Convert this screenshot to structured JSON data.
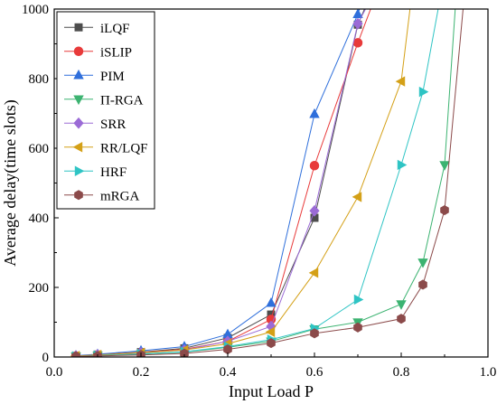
{
  "chart_data": {
    "type": "line",
    "title": "",
    "xlabel": "Input Load P",
    "ylabel": "Average delay(time slots)",
    "xlim": [
      0.0,
      1.0
    ],
    "ylim": [
      0,
      1000
    ],
    "xticks": [
      "0.0",
      "0.2",
      "0.4",
      "0.6",
      "0.8",
      "1.0"
    ],
    "yticks": [
      "0",
      "200",
      "400",
      "600",
      "800",
      "1000"
    ],
    "xtick_values": [
      0.0,
      0.2,
      0.4,
      0.6,
      0.8,
      1.0
    ],
    "ytick_values": [
      0,
      200,
      400,
      600,
      800,
      1000
    ],
    "grid": false,
    "legend_position": "top-left",
    "series": [
      {
        "name": "iLQF",
        "color": "#4d4d4d",
        "marker": "square",
        "x": [
          0.05,
          0.1,
          0.2,
          0.3,
          0.4,
          0.5,
          0.6,
          0.7,
          0.75
        ],
        "y": [
          3,
          7,
          14,
          25,
          55,
          122,
          400,
          955,
          1100
        ]
      },
      {
        "name": "iSLIP",
        "color": "#e83a3a",
        "marker": "circle",
        "x": [
          0.05,
          0.1,
          0.2,
          0.3,
          0.4,
          0.5,
          0.6,
          0.7,
          0.76
        ],
        "y": [
          3,
          6,
          13,
          22,
          45,
          108,
          550,
          903,
          1100
        ]
      },
      {
        "name": "PIM",
        "color": "#2f6fdb",
        "marker": "triangle-up",
        "x": [
          0.05,
          0.1,
          0.2,
          0.3,
          0.4,
          0.5,
          0.6,
          0.7,
          0.73
        ],
        "y": [
          4,
          8,
          18,
          30,
          65,
          155,
          698,
          985,
          1100
        ]
      },
      {
        "name": "Π-RGA",
        "color": "#3cb371",
        "marker": "triangle-down",
        "x": [
          0.05,
          0.1,
          0.2,
          0.3,
          0.4,
          0.5,
          0.6,
          0.7,
          0.8,
          0.85,
          0.9,
          0.93
        ],
        "y": [
          2,
          4,
          8,
          14,
          28,
          45,
          80,
          100,
          152,
          272,
          552,
          1100
        ]
      },
      {
        "name": "SRR",
        "color": "#9b6bd6",
        "marker": "diamond",
        "x": [
          0.05,
          0.1,
          0.2,
          0.3,
          0.4,
          0.5,
          0.6,
          0.7,
          0.76
        ],
        "y": [
          3,
          6,
          12,
          20,
          45,
          88,
          420,
          958,
          1100
        ]
      },
      {
        "name": "RR/LQF",
        "color": "#d4a017",
        "marker": "triangle-left",
        "x": [
          0.05,
          0.1,
          0.2,
          0.3,
          0.4,
          0.5,
          0.6,
          0.7,
          0.8,
          0.83
        ],
        "y": [
          3,
          6,
          12,
          20,
          38,
          72,
          242,
          460,
          792,
          1100
        ]
      },
      {
        "name": "HRF",
        "color": "#2ec4c4",
        "marker": "triangle-right",
        "x": [
          0.05,
          0.1,
          0.2,
          0.3,
          0.4,
          0.5,
          0.6,
          0.7,
          0.8,
          0.85,
          0.9
        ],
        "y": [
          2,
          4,
          9,
          15,
          30,
          50,
          82,
          165,
          552,
          762,
          1100
        ]
      },
      {
        "name": "mRGA",
        "color": "#8b4a4a",
        "marker": "hexagon",
        "x": [
          0.05,
          0.1,
          0.2,
          0.3,
          0.4,
          0.5,
          0.6,
          0.7,
          0.8,
          0.85,
          0.9,
          0.95
        ],
        "y": [
          2,
          3,
          6,
          10,
          22,
          40,
          68,
          85,
          110,
          208,
          422,
          1100
        ]
      }
    ]
  }
}
